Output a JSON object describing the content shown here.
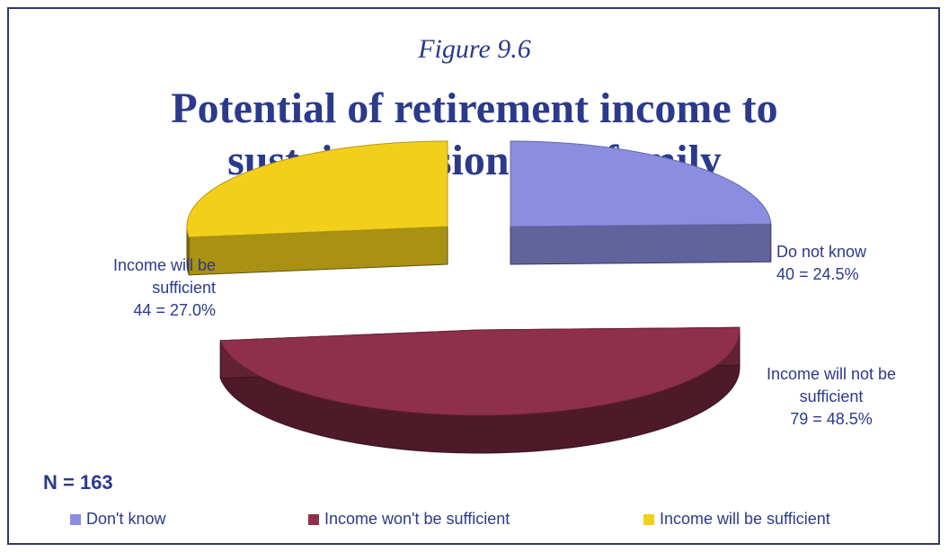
{
  "figure_label": "Figure 9.6",
  "title_lines": [
    "Potential of retirement income to",
    "sustain pensioner & family"
  ],
  "n_label": "N = 163",
  "chart_data": {
    "type": "pie",
    "title": "Potential of retirement income to sustain pensioner & family",
    "total": 163,
    "slices": [
      {
        "name": "Don't know",
        "value": 40,
        "percent": 24.5,
        "color": "#8a8de0",
        "label_lines": [
          "Do not know",
          "40 = 24.5%"
        ]
      },
      {
        "name": "Income won't be sufficient",
        "value": 79,
        "percent": 48.5,
        "color": "#8e2f4c",
        "label_lines": [
          "Income will not be",
          "sufficient",
          "79 = 48.5%"
        ]
      },
      {
        "name": "Income will be sufficient",
        "value": 44,
        "percent": 27.0,
        "color": "#f2cf1a",
        "label_lines": [
          "Income will be",
          "sufficient",
          "44 = 27.0%"
        ]
      }
    ],
    "legend": [
      "Don't know",
      "Income won't be sufficient",
      "Income will be sufficient"
    ],
    "legend_position": "bottom"
  }
}
